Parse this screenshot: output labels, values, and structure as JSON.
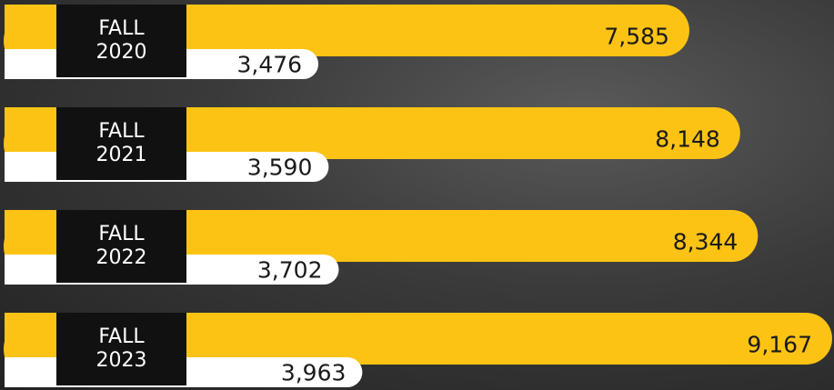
{
  "chart_data": {
    "type": "bar",
    "categories": [
      "FALL\n2020",
      "FALL\n2021",
      "FALL\n2022",
      "FALL\n2023"
    ],
    "series": [
      {
        "color": "#fcc314",
        "values": [
          7585,
          8148,
          8344,
          9167
        ],
        "value_labels": [
          "7,585",
          "8,148",
          "8,344",
          "9,167"
        ]
      },
      {
        "color": "#ffffff",
        "values": [
          3476,
          3590,
          3702,
          3963
        ],
        "value_labels": [
          "3,476",
          "3,590",
          "3,702",
          "3,963"
        ]
      }
    ]
  }
}
